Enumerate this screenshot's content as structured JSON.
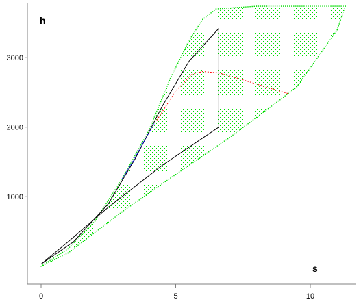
{
  "chart_data": {
    "type": "scatter",
    "xlabel": "s",
    "ylabel": "h",
    "xlim": [
      -0.5,
      11.7
    ],
    "ylim": [
      -160,
      3780
    ],
    "x_ticks": [
      0,
      5,
      10
    ],
    "x_tick_labels": [
      "0",
      "5",
      "10"
    ],
    "y_ticks": [
      1000,
      2000,
      3000
    ],
    "y_tick_labels": [
      "1000",
      "2000",
      "3000"
    ],
    "grid": false,
    "colors": {
      "region": "#00dd00",
      "cycle": "#000000",
      "red_curve": "#ff0000",
      "blue_curve": "#0000ff",
      "axis": "#808080"
    },
    "region_outline": [
      {
        "s": 0.0,
        "h": 0
      },
      {
        "s": 1.0,
        "h": 250
      },
      {
        "s": 2.0,
        "h": 650
      },
      {
        "s": 3.0,
        "h": 1250
      },
      {
        "s": 4.0,
        "h": 1950
      },
      {
        "s": 4.8,
        "h": 2700
      },
      {
        "s": 5.5,
        "h": 3250
      },
      {
        "s": 6.0,
        "h": 3550
      },
      {
        "s": 6.5,
        "h": 3700
      },
      {
        "s": 8.0,
        "h": 3740
      },
      {
        "s": 10.0,
        "h": 3740
      },
      {
        "s": 11.3,
        "h": 3740
      },
      {
        "s": 11.0,
        "h": 3400
      },
      {
        "s": 9.5,
        "h": 2580
      },
      {
        "s": 9.0,
        "h": 2430
      },
      {
        "s": 7.0,
        "h": 1850
      },
      {
        "s": 5.0,
        "h": 1320
      },
      {
        "s": 3.0,
        "h": 780
      },
      {
        "s": 1.0,
        "h": 190
      },
      {
        "s": 0.0,
        "h": 0
      }
    ],
    "red_curve": [
      {
        "s": 4.3,
        "h": 2100
      },
      {
        "s": 5.0,
        "h": 2520
      },
      {
        "s": 5.6,
        "h": 2760
      },
      {
        "s": 6.0,
        "h": 2800
      },
      {
        "s": 6.6,
        "h": 2780
      },
      {
        "s": 7.5,
        "h": 2680
      },
      {
        "s": 8.5,
        "h": 2560
      },
      {
        "s": 9.2,
        "h": 2480
      }
    ],
    "blue_curve": [
      {
        "s": 3.0,
        "h": 1250
      },
      {
        "s": 3.4,
        "h": 1500
      },
      {
        "s": 3.8,
        "h": 1780
      },
      {
        "s": 4.2,
        "h": 2050
      }
    ],
    "cycle_lines": [
      {
        "name": "",
        "points": [
          {
            "s": 0.0,
            "h": 30
          },
          {
            "s": 1.2,
            "h": 350
          },
          {
            "s": 2.5,
            "h": 900
          },
          {
            "s": 3.5,
            "h": 1550
          },
          {
            "s": 4.5,
            "h": 2300
          },
          {
            "s": 5.5,
            "h": 2950
          },
          {
            "s": 6.6,
            "h": 3420
          }
        ]
      },
      {
        "name": "",
        "points": [
          {
            "s": 6.6,
            "h": 3420
          },
          {
            "s": 6.6,
            "h": 2000
          }
        ]
      },
      {
        "name": "",
        "points": [
          {
            "s": 6.6,
            "h": 2000
          },
          {
            "s": 4.5,
            "h": 1450
          },
          {
            "s": 2.5,
            "h": 850
          },
          {
            "s": 1.0,
            "h": 350
          },
          {
            "s": 0.0,
            "h": 30
          }
        ]
      }
    ],
    "scan_start_s": 0.0
  }
}
